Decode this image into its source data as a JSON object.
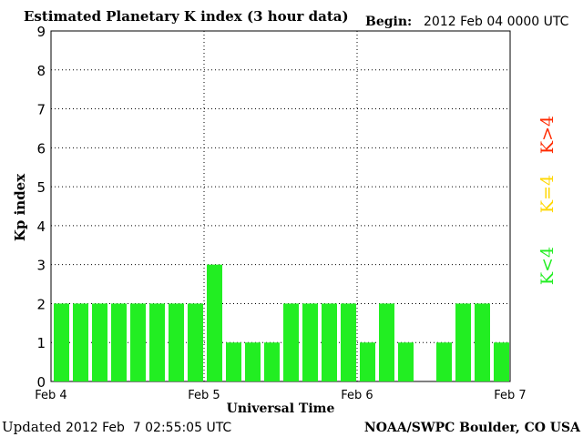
{
  "header": {
    "title": "Estimated Planetary K index (3 hour data)",
    "begin_label": "Begin:",
    "begin_value": "2012 Feb 04 0000 UTC"
  },
  "footer": {
    "updated_label": "Updated",
    "updated_value": "2012 Feb  7 02:55:05 UTC",
    "source": "NOAA/SWPC Boulder, CO USA"
  },
  "legend": {
    "high": {
      "label": "K>4",
      "color": "#ff2a00"
    },
    "equal": {
      "label": "K=4",
      "color": "#ffd700"
    },
    "low": {
      "label": "K<4",
      "color": "#22ee22"
    }
  },
  "chart_data": {
    "type": "bar",
    "xlabel": "Universal Time",
    "ylabel": "Kp index",
    "ylim": [
      0,
      9
    ],
    "y_ticks": [
      "0",
      "1",
      "2",
      "3",
      "4",
      "5",
      "6",
      "7",
      "8",
      "9"
    ],
    "x_ticks": [
      "Feb 4",
      "Feb 5",
      "Feb 6",
      "Feb 7"
    ],
    "bar_color": "#22ee22",
    "grid": "dotted",
    "periods_per_day": 8,
    "values": [
      2,
      2,
      2,
      2,
      2,
      2,
      2,
      2,
      3,
      1,
      1,
      1,
      2,
      2,
      2,
      2,
      1,
      2,
      1,
      0,
      1,
      2,
      2,
      1
    ]
  }
}
